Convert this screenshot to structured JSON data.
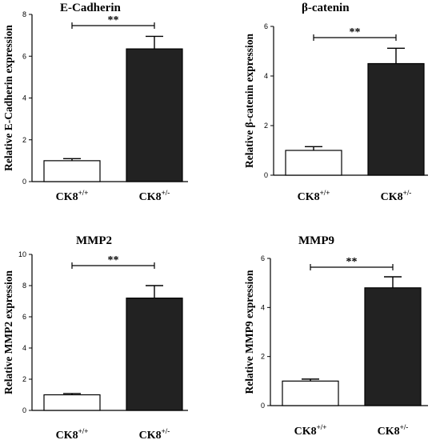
{
  "chart_data": [
    {
      "type": "bar",
      "title": "E-Cadherin",
      "ylabel": "Relative E-Cadherin expression",
      "ylim": [
        0,
        8
      ],
      "yticks": [
        0,
        2,
        4,
        6,
        8
      ],
      "categories": [
        {
          "base": "CK8",
          "sup": "+/+"
        },
        {
          "base": "CK8",
          "sup": "+/-"
        }
      ],
      "values": [
        1.0,
        6.35
      ],
      "errors": [
        0.1,
        0.6
      ],
      "bar_colors": [
        "#ffffff",
        "#222222"
      ],
      "significance": "**"
    },
    {
      "type": "bar",
      "title": "β-catenin",
      "ylabel": "Relative β-catenin expression",
      "ylim": [
        0,
        6
      ],
      "yticks": [
        0,
        2,
        4,
        6
      ],
      "categories": [
        {
          "base": "CK8",
          "sup": "+/+"
        },
        {
          "base": "CK8",
          "sup": "+/-"
        }
      ],
      "values": [
        1.0,
        4.5
      ],
      "errors": [
        0.15,
        0.62
      ],
      "bar_colors": [
        "#ffffff",
        "#222222"
      ],
      "significance": "**"
    },
    {
      "type": "bar",
      "title": "MMP2",
      "ylabel": "Relative MMP2 expression",
      "ylim": [
        0,
        10
      ],
      "yticks": [
        0,
        2,
        4,
        6,
        8,
        10
      ],
      "categories": [
        {
          "base": "CK8",
          "sup": "+/+"
        },
        {
          "base": "CK8",
          "sup": "+/-"
        }
      ],
      "values": [
        1.0,
        7.2
      ],
      "errors": [
        0.08,
        0.8
      ],
      "bar_colors": [
        "#ffffff",
        "#222222"
      ],
      "significance": "**"
    },
    {
      "type": "bar",
      "title": "MMP9",
      "ylabel": "Relative MMP9 expression",
      "ylim": [
        0,
        6
      ],
      "yticks": [
        0,
        2,
        4,
        6
      ],
      "categories": [
        {
          "base": "CK8",
          "sup": "+/+"
        },
        {
          "base": "CK8",
          "sup": "+/-"
        }
      ],
      "values": [
        1.0,
        4.8
      ],
      "errors": [
        0.08,
        0.45
      ],
      "bar_colors": [
        "#ffffff",
        "#222222"
      ],
      "significance": "**"
    }
  ]
}
